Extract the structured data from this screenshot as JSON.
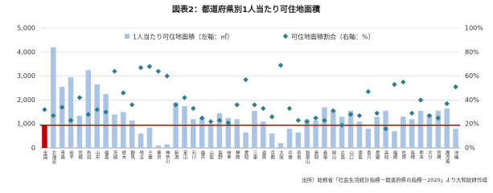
{
  "chart_data": {
    "type": "bar-dot",
    "title": "図表2：都道府県別1人当たり可住地面積",
    "source": "出所）総務省「社会生活統計指標－都道府県の指標－2020」より大和総研作成",
    "categories": [
      "全国",
      "北海道",
      "青森",
      "岩手",
      "宮城",
      "秋田",
      "山形",
      "福島",
      "茨城",
      "栃木",
      "群馬",
      "埼玉",
      "千葉",
      "東京",
      "神奈川",
      "新潟",
      "富山",
      "石川",
      "福井",
      "山梨",
      "長野",
      "岐阜",
      "静岡",
      "愛知",
      "三重",
      "滋賀",
      "京都",
      "大阪",
      "兵庫",
      "奈良",
      "和歌山",
      "鳥取",
      "島根",
      "岡山",
      "広島",
      "山口",
      "徳島",
      "香川",
      "愛媛",
      "高知",
      "福岡",
      "佐賀",
      "長崎",
      "熊本",
      "大分",
      "宮崎",
      "鹿児島",
      "沖縄"
    ],
    "series": [
      {
        "name": "1人当たり可住地面積（左軸：㎡）",
        "color": "#a9c4e4",
        "highlight_color": "#c00000",
        "values": [
          950,
          4200,
          2550,
          2950,
          1350,
          3250,
          2650,
          2250,
          1400,
          1500,
          1150,
          600,
          850,
          100,
          150,
          1900,
          1750,
          1200,
          1250,
          1000,
          1450,
          1250,
          1200,
          650,
          1550,
          1100,
          600,
          200,
          800,
          650,
          1200,
          1150,
          1700,
          1500,
          1300,
          1550,
          1100,
          800,
          1300,
          1550,
          700,
          1300,
          1200,
          1550,
          1400,
          1550,
          1650,
          800
        ]
      },
      {
        "name": "可住地面積割合（右軸：%）",
        "color": "#2e7d8c",
        "axis": "y2",
        "values": [
          32,
          27,
          34,
          23,
          42,
          28,
          32,
          30,
          64,
          46,
          36,
          67,
          68,
          64,
          60,
          36,
          42,
          33,
          25,
          22,
          23,
          21,
          36,
          57,
          36,
          33,
          26,
          69,
          33,
          23,
          22,
          25,
          23,
          31,
          19,
          28,
          27,
          47,
          29,
          16,
          53,
          55,
          29,
          40,
          27,
          25,
          37,
          51
        ]
      }
    ],
    "ylim": [
      0,
      5000
    ],
    "yticks": [
      0,
      {
        "value": 1000,
        "label": "1,000"
      },
      {
        "value": 2000,
        "label": "2,000"
      },
      {
        "value": 3000,
        "label": "3,000"
      },
      {
        "value": 4000,
        "label": "4,000"
      },
      {
        "value": 5000,
        "label": "5,000"
      }
    ],
    "y2lim": [
      0,
      100
    ],
    "y2ticks": [
      {
        "value": 0,
        "label": "0%"
      },
      {
        "value": 20,
        "label": "20%"
      },
      {
        "value": 40,
        "label": "40%"
      },
      {
        "value": 60,
        "label": "60%"
      },
      {
        "value": 80,
        "label": "80%"
      },
      {
        "value": 100,
        "label": "100%"
      }
    ],
    "grid": true,
    "reference_line_color": "#c00000"
  }
}
